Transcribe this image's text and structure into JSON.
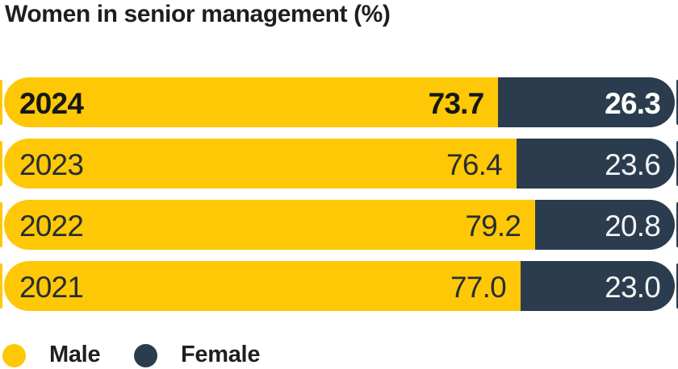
{
  "title": "Women in senior management (%)",
  "colors": {
    "male": "#fec806",
    "female": "#2b3c4e",
    "ink": "#1d1f20",
    "value_on_male": "#272d34",
    "value_on_female": "#ffffff"
  },
  "legend": [
    {
      "label": "Male",
      "color": "#fec806"
    },
    {
      "label": "Female",
      "color": "#2b3c4e"
    }
  ],
  "chart_data": {
    "type": "bar",
    "orientation": "horizontal",
    "stacked": true,
    "unit": "%",
    "title": "Women in senior management (%)",
    "categories": [
      "2024",
      "2023",
      "2022",
      "2021"
    ],
    "series": [
      {
        "name": "Male",
        "values": [
          73.7,
          76.4,
          79.2,
          77.0
        ]
      },
      {
        "name": "Female",
        "values": [
          26.3,
          23.6,
          20.8,
          23.0
        ]
      }
    ],
    "rows": [
      {
        "year": "2024",
        "male": 73.7,
        "female": 26.3,
        "male_label": "73.7",
        "female_label": "26.3",
        "emphasized": true
      },
      {
        "year": "2023",
        "male": 76.4,
        "female": 23.6,
        "male_label": "76.4",
        "female_label": "23.6",
        "emphasized": false
      },
      {
        "year": "2022",
        "male": 79.2,
        "female": 20.8,
        "male_label": "79.2",
        "female_label": "20.8",
        "emphasized": false
      },
      {
        "year": "2021",
        "male": 77.0,
        "female": 23.0,
        "male_label": "77.0",
        "female_label": "23.0",
        "emphasized": false
      }
    ],
    "xlim": [
      0,
      100
    ],
    "grid": false,
    "legend_position": "bottom-left"
  }
}
